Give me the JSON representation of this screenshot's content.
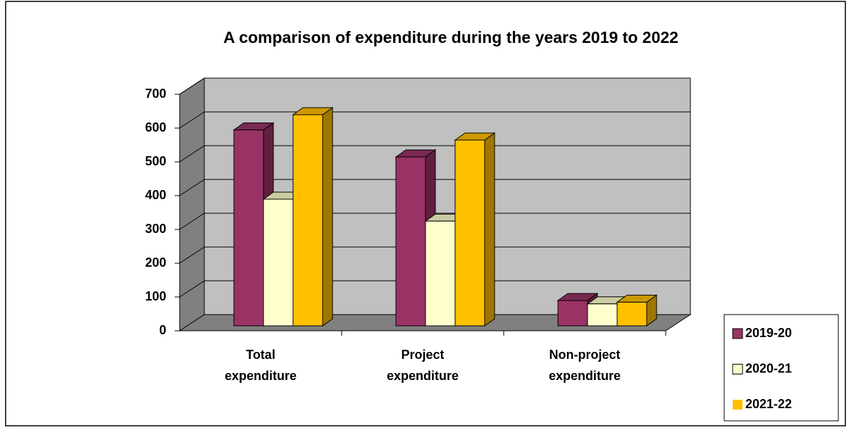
{
  "chart_data": {
    "type": "bar3d",
    "title": "A comparison of expenditure during the years 2019 to 2022",
    "categories": [
      [
        "Total",
        "expenditure"
      ],
      [
        "Project",
        "expenditure"
      ],
      [
        "Non-project",
        "expenditure"
      ]
    ],
    "series": [
      {
        "name": "2019-20",
        "color": "#993366",
        "values": [
          580,
          500,
          75
        ]
      },
      {
        "name": "2020-21",
        "color": "#ffffcc",
        "values": [
          375,
          310,
          65
        ]
      },
      {
        "name": "2021-22",
        "color": "#ffc000",
        "values": [
          625,
          550,
          70
        ]
      }
    ],
    "ylim": [
      0,
      700
    ],
    "yticks": [
      0,
      100,
      200,
      300,
      400,
      500,
      600,
      700
    ],
    "grid": true,
    "legend": "bottom-right"
  }
}
